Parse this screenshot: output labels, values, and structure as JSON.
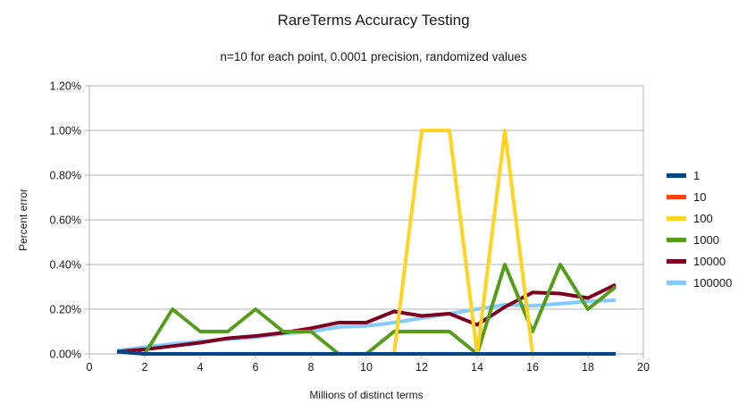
{
  "chart_data": {
    "type": "line",
    "title": "RareTerms Accuracy Testing",
    "subtitle": "n=10 for each point, 0.0001 precision, randomized values",
    "xlabel": "Millions of distinct terms",
    "ylabel": "Percent error",
    "xlim": [
      0,
      20
    ],
    "ylim": [
      0,
      1.2
    ],
    "grid": true,
    "legend_position": "right",
    "x_ticks": [
      0,
      2,
      4,
      6,
      8,
      10,
      12,
      14,
      16,
      18,
      20
    ],
    "y_ticks": [
      0,
      0.2,
      0.4,
      0.6,
      0.8,
      1.0,
      1.2
    ],
    "y_tick_labels": [
      "0.00%",
      "0.20%",
      "0.40%",
      "0.60%",
      "0.80%",
      "1.00%",
      "1.20%"
    ],
    "x": [
      1,
      2,
      3,
      4,
      5,
      6,
      7,
      8,
      9,
      10,
      11,
      12,
      13,
      14,
      15,
      16,
      17,
      18,
      19
    ],
    "series": [
      {
        "name": "1",
        "color": "#004586",
        "values": [
          0.01,
          0,
          0,
          0,
          0,
          0,
          0,
          0,
          0,
          0,
          0,
          0,
          0,
          0,
          0,
          0,
          0,
          0,
          0
        ]
      },
      {
        "name": "10",
        "color": "#FF420E",
        "values": [
          0.01,
          0,
          0,
          0,
          0,
          0,
          0,
          0,
          0,
          0,
          0,
          0,
          0,
          0,
          0,
          0,
          0,
          0,
          0
        ]
      },
      {
        "name": "100",
        "color": "#FFD320",
        "values": [
          0.01,
          0,
          0,
          0,
          0,
          0,
          0,
          0,
          0,
          0,
          0,
          1.0,
          1.0,
          0,
          1.0,
          0,
          0,
          0,
          0
        ]
      },
      {
        "name": "1000",
        "color": "#579D1C",
        "values": [
          0.01,
          0,
          0.2,
          0.1,
          0.1,
          0.2,
          0.1,
          0.1,
          0,
          0,
          0.1,
          0.1,
          0.1,
          0,
          0.4,
          0.1,
          0.4,
          0.2,
          0.3
        ]
      },
      {
        "name": "10000",
        "color": "#7E0021",
        "values": [
          0.01,
          0.02,
          0.035,
          0.05,
          0.07,
          0.08,
          0.095,
          0.115,
          0.14,
          0.14,
          0.19,
          0.17,
          0.18,
          0.13,
          0.21,
          0.275,
          0.27,
          0.25,
          0.31
        ]
      },
      {
        "name": "100000",
        "color": "#83CAFF",
        "values": [
          0.015,
          0.03,
          0.045,
          0.055,
          0.065,
          0.075,
          0.09,
          0.1,
          0.12,
          0.125,
          0.14,
          0.16,
          0.18,
          0.2,
          0.22,
          0.215,
          0.225,
          0.235,
          0.24
        ]
      }
    ],
    "draw_order": [
      "100000",
      "10000",
      "1000",
      "100",
      "10",
      "1"
    ],
    "line_width": 4,
    "grid_color": "#b3b3b3",
    "text_color": "#1a1a1a"
  },
  "layout_note": "legend entries read top to bottom: 1, 10, 100, 1000, 10000, 100000"
}
